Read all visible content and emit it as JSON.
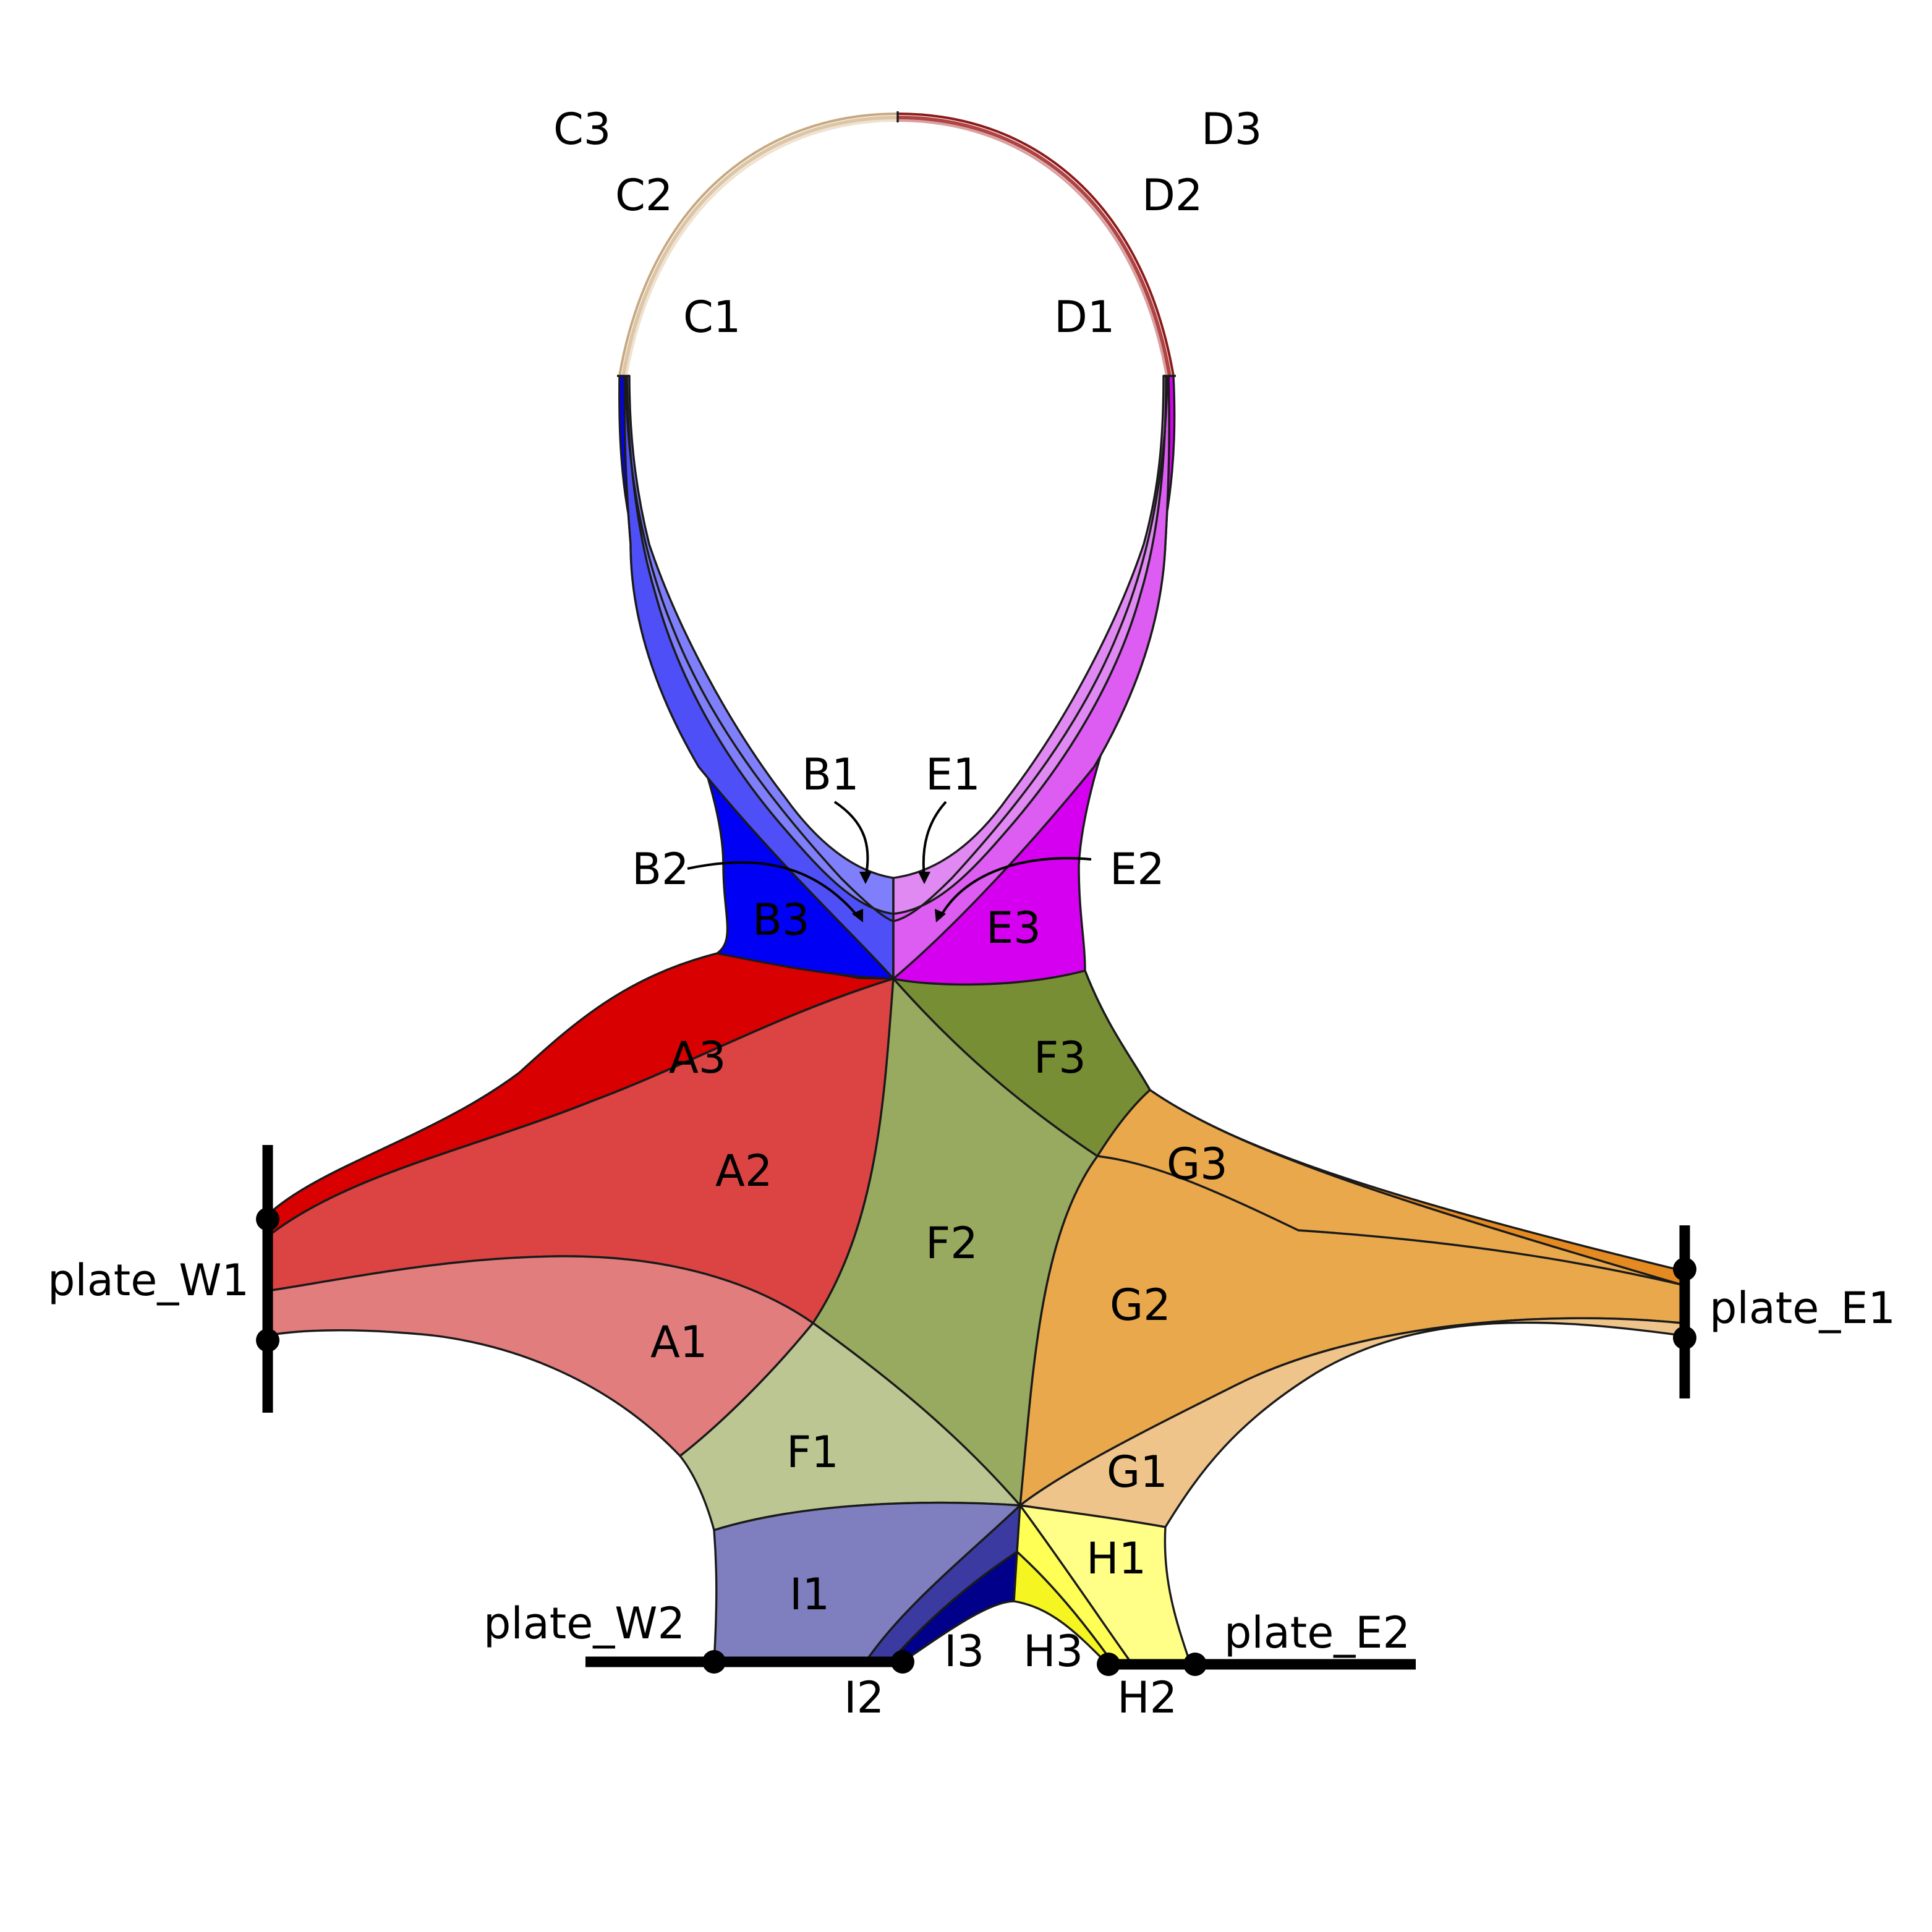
{
  "diagram": {
    "regions": {
      "A1": {
        "label": "A1",
        "color": "#e27d7d"
      },
      "A2": {
        "label": "A2",
        "color": "#dc4343"
      },
      "A3": {
        "label": "A3",
        "color": "#d80000"
      },
      "B1": {
        "label": "B1",
        "color": "#7f7ffc"
      },
      "B2": {
        "label": "B2",
        "color": "#4f4ff8"
      },
      "B3": {
        "label": "B3",
        "color": "#0000f5"
      },
      "C1": {
        "label": "C1",
        "color": "#efe2cf"
      },
      "C2": {
        "label": "C2",
        "color": "#ddc6a8"
      },
      "C3": {
        "label": "C3",
        "color": "#c7a880"
      },
      "D1": {
        "label": "D1",
        "color": "#d9a0a0"
      },
      "D2": {
        "label": "D2",
        "color": "#b04444"
      },
      "D3": {
        "label": "D3",
        "color": "#8c1a1a"
      },
      "E1": {
        "label": "E1",
        "color": "#e189f3"
      },
      "E2": {
        "label": "E2",
        "color": "#dd5cf2"
      },
      "E3": {
        "label": "E3",
        "color": "#d600f0"
      },
      "F1": {
        "label": "F1",
        "color": "#bbc693"
      },
      "F2": {
        "label": "F2",
        "color": "#98aa5f"
      },
      "F3": {
        "label": "F3",
        "color": "#788e35"
      },
      "G1": {
        "label": "G1",
        "color": "#eec48a"
      },
      "G2": {
        "label": "G2",
        "color": "#e9a84b"
      },
      "G3": {
        "label": "G3",
        "color": "#e48a20"
      },
      "H1": {
        "label": "H1",
        "color": "#ffff88"
      },
      "H2": {
        "label": "H2",
        "color": "#ffff55"
      },
      "H3": {
        "label": "H3",
        "color": "#f5f521"
      },
      "I1": {
        "label": "I1",
        "color": "#7f7fbf"
      },
      "I2": {
        "label": "I2",
        "color": "#3a3aa0"
      },
      "I3": {
        "label": "I3",
        "color": "#00008a"
      }
    },
    "plates": {
      "W1": {
        "label": "plate_W1"
      },
      "W2": {
        "label": "plate_W2"
      },
      "E1": {
        "label": "plate_E1"
      },
      "E2": {
        "label": "plate_E2"
      }
    }
  }
}
